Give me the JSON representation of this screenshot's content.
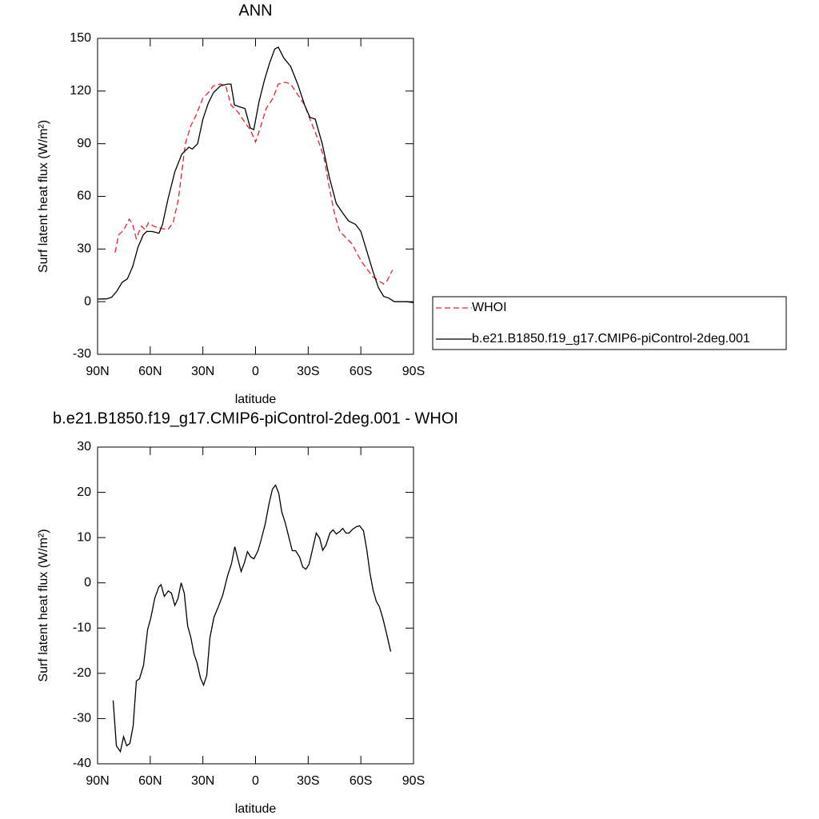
{
  "chart_data": [
    {
      "type": "line",
      "title": "ANN",
      "ylabel": "Surf latent heat flux (W/m²)",
      "xlabel": "latitude",
      "xlim": [
        90,
        -90
      ],
      "xticks": [
        {
          "value": 90,
          "label": "90N"
        },
        {
          "value": 60,
          "label": "60N"
        },
        {
          "value": 30,
          "label": "30N"
        },
        0,
        {
          "value": -30,
          "label": "30S"
        },
        {
          "value": -60,
          "label": "60S"
        },
        {
          "value": -90,
          "label": "90S"
        }
      ],
      "ylim": [
        -30,
        150
      ],
      "yticks": [
        -30,
        0,
        30,
        60,
        90,
        120,
        150
      ],
      "legend": "right",
      "series": [
        {
          "name": "WHOI",
          "color": "#e8202a",
          "dash": true,
          "x": [
            80,
            78,
            75,
            72,
            70,
            68,
            65,
            63,
            61,
            58,
            55,
            50,
            47,
            44,
            40,
            37,
            34,
            30,
            27,
            24,
            20,
            17,
            14,
            10,
            6,
            3,
            0,
            -3,
            -6,
            -10,
            -13,
            -17,
            -20,
            -24,
            -28,
            -31,
            -35,
            -39,
            -42,
            -45,
            -48,
            -52,
            -55,
            -58,
            -61,
            -64,
            -67,
            -70,
            -73,
            -75,
            -78
          ],
          "values": [
            28,
            38,
            41,
            47,
            44,
            36,
            43,
            41,
            45,
            43,
            42,
            41,
            45,
            58,
            90,
            100,
            106,
            116,
            119,
            123,
            124,
            123,
            112,
            108,
            102,
            98,
            91,
            100,
            110,
            116,
            124,
            125,
            124,
            118,
            112,
            104,
            94,
            82,
            65,
            50,
            40,
            36,
            33,
            27,
            22,
            18,
            14,
            12,
            10,
            12,
            18
          ]
        },
        {
          "name": "b.e21.B1850.f19_g17.CMIP6-piControl-2deg.001",
          "color": "#000000",
          "dash": false,
          "x": [
            90,
            85,
            82,
            79,
            76,
            73,
            70,
            67,
            64,
            62,
            59,
            55,
            53,
            50,
            46,
            42,
            38,
            36,
            33,
            30,
            27,
            24,
            20,
            16,
            14,
            12,
            9,
            6,
            3,
            1,
            -2,
            -5,
            -8,
            -11,
            -13,
            -16,
            -20,
            -24,
            -28,
            -31,
            -34,
            -38,
            -42,
            -46,
            -50,
            -53,
            -57,
            -60,
            -63,
            -67,
            -70,
            -73,
            -76,
            -79,
            -82,
            -86,
            -90
          ],
          "values": [
            1.5,
            1.6,
            2.5,
            6,
            11,
            13,
            20,
            31,
            38,
            40,
            40,
            39,
            44,
            58,
            74,
            84,
            88,
            87,
            90,
            104,
            113,
            119,
            123,
            124,
            124,
            112,
            111,
            110,
            99,
            98,
            114,
            126,
            136,
            144,
            145,
            139,
            134,
            124,
            112,
            105,
            104,
            90,
            71,
            56,
            50,
            46,
            44,
            40,
            30,
            17,
            8,
            3,
            2,
            0,
            0,
            0,
            -0.5
          ]
        }
      ]
    },
    {
      "type": "line",
      "title": "b.e21.B1850.f19_g17.CMIP6-piControl-2deg.001 - WHOI",
      "ylabel": "Surf latent heat flux (W/m²)",
      "xlabel": "latitude",
      "xlim": [
        90,
        -90
      ],
      "xticks": [
        {
          "value": 90,
          "label": "90N"
        },
        {
          "value": 60,
          "label": "60N"
        },
        {
          "value": 30,
          "label": "30N"
        },
        0,
        {
          "value": -30,
          "label": "30S"
        },
        {
          "value": -60,
          "label": "60S"
        },
        {
          "value": -90,
          "label": "90S"
        }
      ],
      "ylim": [
        -40,
        30
      ],
      "yticks": [
        -40,
        -30,
        -20,
        -10,
        0,
        10,
        20,
        30
      ],
      "series": [
        {
          "color": "#000000",
          "dash": false,
          "x": [
            81.1,
            79.3,
            77.0,
            75.2,
            73.4,
            71.6,
            69.7,
            67.9,
            66.1,
            63.8,
            61.5,
            59.7,
            57.4,
            55.1,
            53.8,
            52.0,
            49.7,
            47.9,
            46.0,
            44.2,
            42.4,
            40.6,
            38.7,
            36.9,
            35.1,
            33.3,
            31.4,
            29.6,
            27.8,
            26.0,
            23.7,
            21.4,
            18.7,
            15.9,
            13.7,
            11.8,
            10.0,
            8.2,
            6.4,
            4.6,
            2.7,
            0.9,
            -1.4,
            -3.2,
            -5.5,
            -7.7,
            -9.6,
            -11.4,
            -13.2,
            -15.0,
            -16.9,
            -19.1,
            -20.9,
            -22.8,
            -25.1,
            -26.9,
            -28.7,
            -30.5,
            -32.8,
            -34.6,
            -36.5,
            -38.3,
            -40.1,
            -42.4,
            -44.2,
            -46.0,
            -47.9,
            -49.7,
            -51.5,
            -53.3,
            -55.2,
            -57.4,
            -59.3,
            -61.5,
            -63.4,
            -65.2,
            -67.0,
            -68.8,
            -70.6,
            -72.5,
            -74.3,
            -77.0
          ],
          "values": [
            -26,
            -36,
            -37.3,
            -34,
            -36,
            -35.5,
            -31.6,
            -21.7,
            -21.2,
            -18.2,
            -10.4,
            -7.8,
            -3.4,
            -0.9,
            -0.4,
            -3,
            -1.8,
            -2.3,
            -5,
            -3.5,
            0,
            -2.3,
            -9.5,
            -12,
            -15.7,
            -17.7,
            -21,
            -22.6,
            -20.5,
            -12.2,
            -7.6,
            -5.5,
            -2.7,
            1.6,
            4.2,
            8,
            5.1,
            2.5,
            4.4,
            6.9,
            5.7,
            5.3,
            7.1,
            9.5,
            13,
            17.5,
            20.7,
            21.6,
            19.8,
            15.6,
            13.3,
            9.9,
            7.1,
            7.1,
            5.7,
            3.5,
            3,
            4.1,
            8,
            11,
            9.9,
            7.2,
            8.3,
            11,
            11.7,
            10.8,
            11.3,
            12,
            11,
            11,
            11.8,
            12.4,
            12.6,
            11.5,
            7.3,
            2.1,
            -1.6,
            -4.1,
            -5.3,
            -7.8,
            -10.6,
            -15.2
          ]
        }
      ]
    }
  ]
}
